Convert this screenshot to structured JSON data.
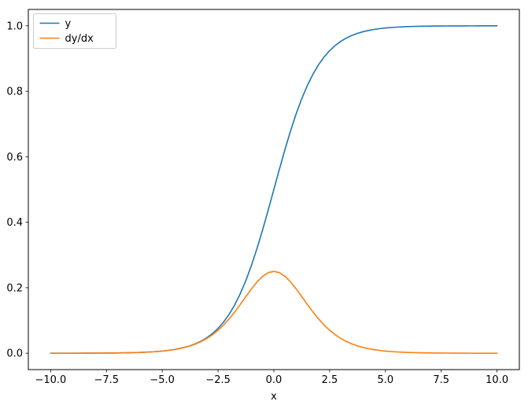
{
  "figure": {
    "background": "#ffffff"
  },
  "chart_data": {
    "type": "line",
    "title": "",
    "xlabel": "x",
    "ylabel": "",
    "xlim": [
      -11,
      11
    ],
    "ylim": [
      -0.05,
      1.05
    ],
    "grid": false,
    "x_ticks": [
      -10.0,
      -7.5,
      -5.0,
      -2.5,
      0.0,
      2.5,
      5.0,
      7.5,
      10.0
    ],
    "x_tick_labels": [
      "−10.0",
      "−7.5",
      "−5.0",
      "−2.5",
      "0.0",
      "2.5",
      "5.0",
      "7.5",
      "10.0"
    ],
    "y_ticks": [
      0.0,
      0.2,
      0.4,
      0.6,
      0.8,
      1.0
    ],
    "y_tick_labels": [
      "0.0",
      "0.2",
      "0.4",
      "0.6",
      "0.8",
      "1.0"
    ],
    "legend": {
      "position": "upper-left",
      "entries": [
        "y",
        "dy/dx"
      ],
      "background": "#ffffff",
      "border_color": "#cccccc"
    },
    "x": [
      -10,
      -9.75,
      -9.5,
      -9.25,
      -9,
      -8.75,
      -8.5,
      -8.25,
      -8,
      -7.75,
      -7.5,
      -7.25,
      -7,
      -6.75,
      -6.5,
      -6.25,
      -6,
      -5.75,
      -5.5,
      -5.25,
      -5,
      -4.75,
      -4.5,
      -4.25,
      -4,
      -3.75,
      -3.5,
      -3.25,
      -3,
      -2.75,
      -2.5,
      -2.25,
      -2,
      -1.75,
      -1.5,
      -1.25,
      -1,
      -0.75,
      -0.5,
      -0.25,
      0,
      0.25,
      0.5,
      0.75,
      1,
      1.25,
      1.5,
      1.75,
      2,
      2.25,
      2.5,
      2.75,
      3,
      3.25,
      3.5,
      3.75,
      4,
      4.25,
      4.5,
      4.75,
      5,
      5.25,
      5.5,
      5.75,
      6,
      6.25,
      6.5,
      6.75,
      7,
      7.25,
      7.5,
      7.75,
      8,
      8.25,
      8.5,
      8.75,
      9,
      9.25,
      9.5,
      9.75,
      10
    ],
    "series": [
      {
        "name": "y",
        "color": "#1f77b4",
        "values": [
          4.5e-05,
          5.8e-05,
          7.5e-05,
          9.6e-05,
          0.000123,
          0.000158,
          0.000203,
          0.000261,
          0.000335,
          0.000431,
          0.000553,
          0.00071,
          0.000911,
          0.00117,
          0.001501,
          0.001927,
          0.002473,
          0.003173,
          0.00407,
          0.00522,
          0.006693,
          0.008577,
          0.010987,
          0.014064,
          0.017986,
          0.022977,
          0.029312,
          0.037327,
          0.047426,
          0.060087,
          0.075858,
          0.095349,
          0.119203,
          0.148047,
          0.182426,
          0.2227,
          0.268941,
          0.320821,
          0.377541,
          0.437823,
          0.5,
          0.562177,
          0.622459,
          0.679179,
          0.731059,
          0.7773,
          0.817574,
          0.851953,
          0.880797,
          0.904651,
          0.924142,
          0.939913,
          0.952574,
          0.962673,
          0.970688,
          0.977023,
          0.982014,
          0.985936,
          0.989013,
          0.991423,
          0.993307,
          0.99478,
          0.99593,
          0.996827,
          0.997527,
          0.998073,
          0.998499,
          0.998831,
          0.999089,
          0.99929,
          0.999447,
          0.999569,
          0.999665,
          0.999739,
          0.999797,
          0.999842,
          0.999877,
          0.999904,
          0.999925,
          0.999942,
          0.999955
        ]
      },
      {
        "name": "dy/dx",
        "color": "#ff7f0e",
        "values": [
          4.5e-05,
          5.8e-05,
          7.5e-05,
          9.6e-05,
          0.000123,
          0.000158,
          0.000203,
          0.000261,
          0.000335,
          0.000431,
          0.000552,
          0.000709,
          0.00091,
          0.001168,
          0.001499,
          0.001923,
          0.002466,
          0.003163,
          0.004053,
          0.005193,
          0.006648,
          0.008503,
          0.010866,
          0.013866,
          0.017663,
          0.022449,
          0.028453,
          0.035934,
          0.045177,
          0.056476,
          0.070104,
          0.086258,
          0.104994,
          0.126128,
          0.149146,
          0.173105,
          0.196612,
          0.217895,
          0.235004,
          0.246134,
          0.25,
          0.246134,
          0.235004,
          0.217895,
          0.196612,
          0.173105,
          0.149146,
          0.126128,
          0.104994,
          0.086258,
          0.070104,
          0.056476,
          0.045177,
          0.035934,
          0.028453,
          0.022449,
          0.017663,
          0.013866,
          0.010866,
          0.008503,
          0.006648,
          0.005193,
          0.004053,
          0.003163,
          0.002466,
          0.001923,
          0.001499,
          0.001168,
          0.00091,
          0.000709,
          0.000552,
          0.000431,
          0.000335,
          0.000261,
          0.000203,
          0.000158,
          0.000123,
          9.6e-05,
          7.5e-05,
          5.8e-05,
          4.5e-05
        ]
      }
    ]
  }
}
